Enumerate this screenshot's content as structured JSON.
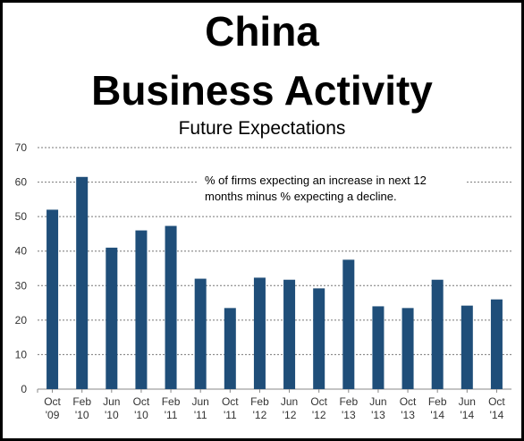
{
  "chart_data": {
    "type": "bar",
    "title": "China",
    "title_line2": "Business Activity",
    "subtitle": "Future Expectations",
    "annotation": [
      "% of firms expecting an increase in next 12",
      "months minus % expecting a decline."
    ],
    "categories": [
      [
        "Oct",
        "'09"
      ],
      [
        "Feb",
        "'10"
      ],
      [
        "Jun",
        "'10"
      ],
      [
        "Oct",
        "'10"
      ],
      [
        "Feb",
        "'11"
      ],
      [
        "Jun",
        "'11"
      ],
      [
        "Oct",
        "'11"
      ],
      [
        "Feb",
        "'12"
      ],
      [
        "Jun",
        "'12"
      ],
      [
        "Oct",
        "'12"
      ],
      [
        "Feb",
        "'13"
      ],
      [
        "Jun",
        "'13"
      ],
      [
        "Oct",
        "'13"
      ],
      [
        "Feb",
        "'14"
      ],
      [
        "Jun",
        "'14"
      ],
      [
        "Oct",
        "'14"
      ]
    ],
    "values": [
      52,
      61.5,
      41,
      46,
      47.3,
      32,
      23.5,
      32.3,
      31.7,
      29.2,
      37.5,
      24,
      23.5,
      31.7,
      24.2,
      26
    ],
    "ylim": [
      0,
      70
    ],
    "yticks": [
      0,
      10,
      20,
      30,
      40,
      50,
      60,
      70
    ],
    "grid": "dotted horizontal",
    "bar_color": "#1f4e79"
  }
}
